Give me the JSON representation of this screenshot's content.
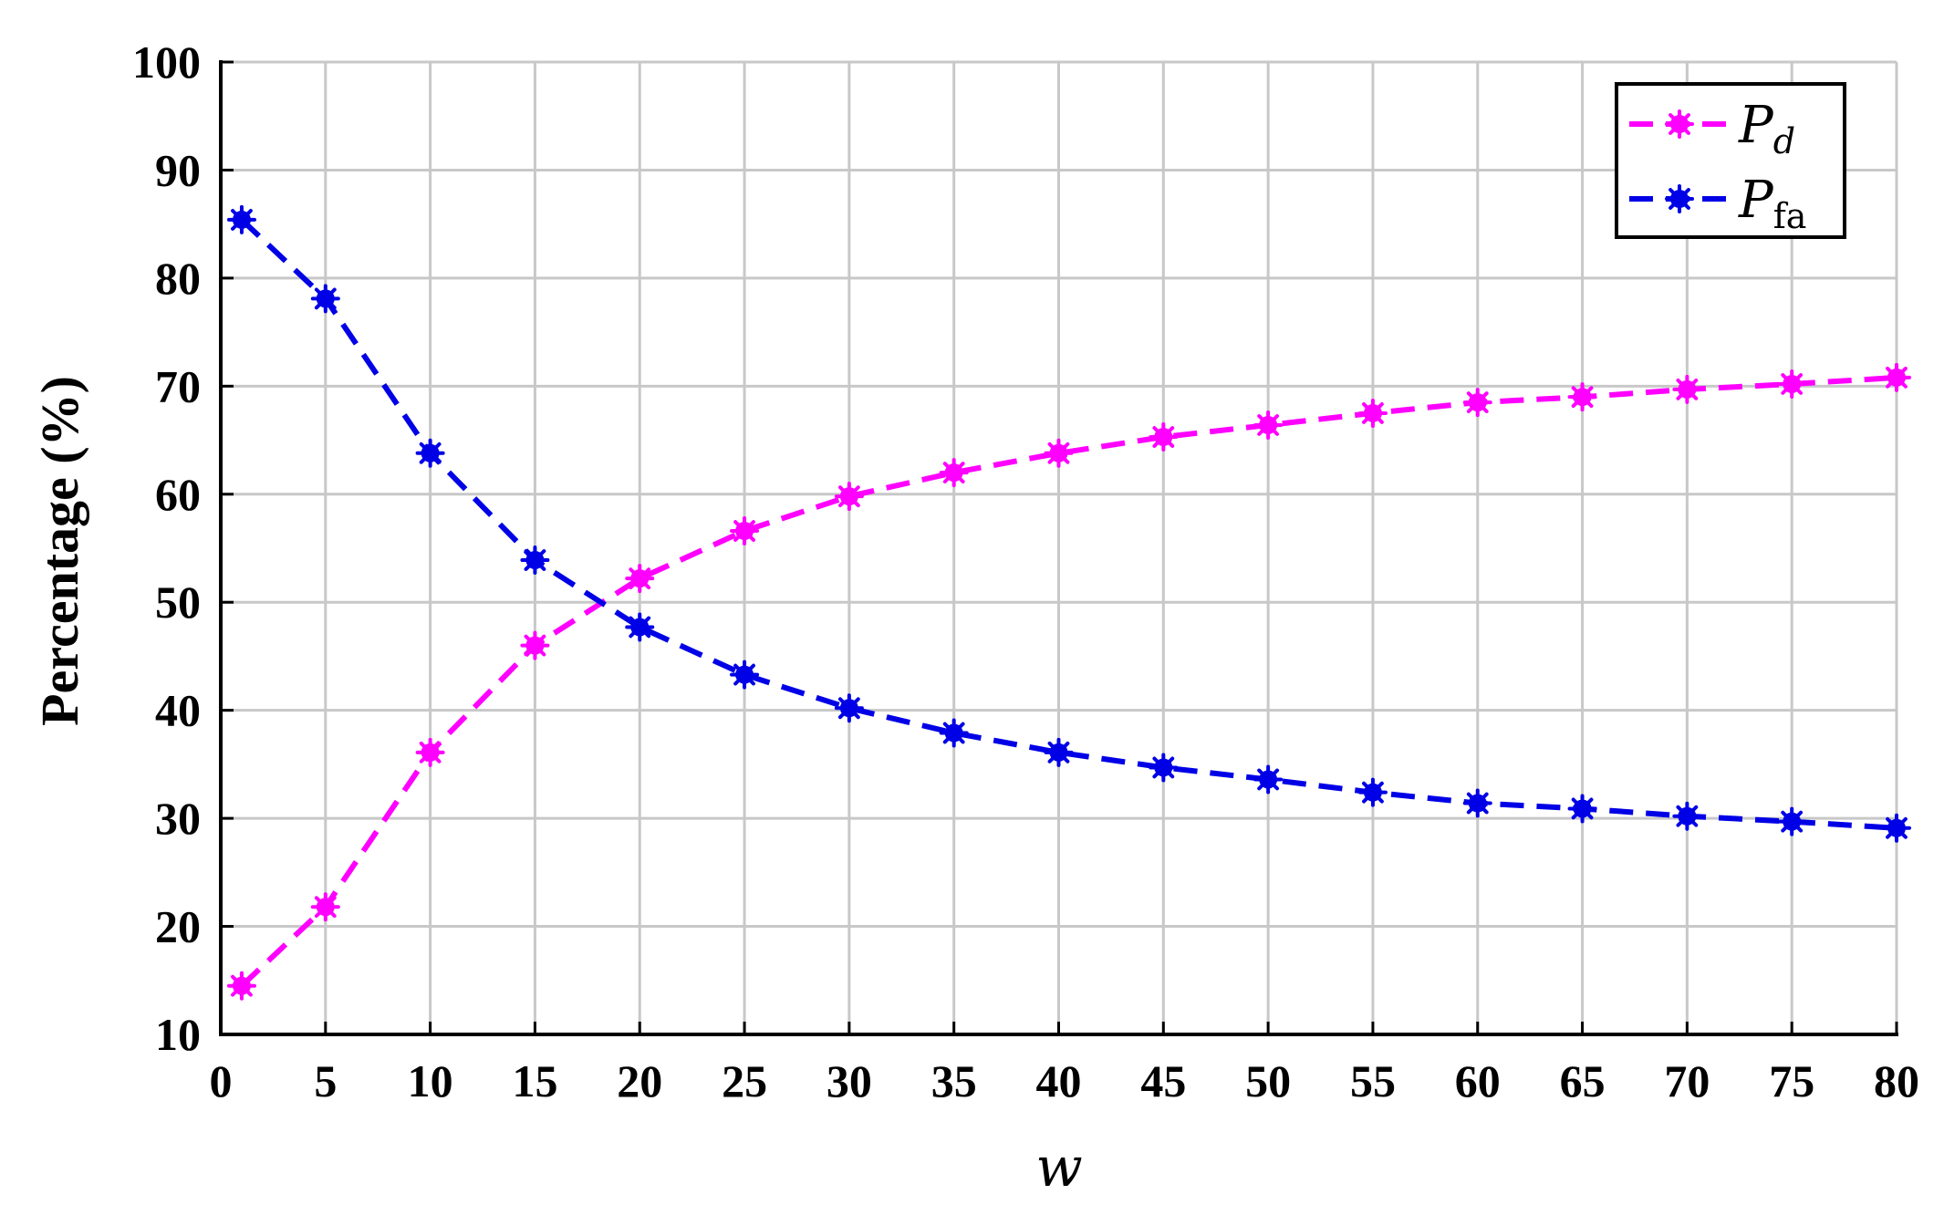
{
  "chart_data": {
    "type": "line",
    "x": [
      1,
      5,
      10,
      15,
      20,
      25,
      30,
      35,
      40,
      45,
      50,
      55,
      60,
      65,
      70,
      75,
      80
    ],
    "series": [
      {
        "name": "P",
        "name_sub": "d",
        "color": "#ff00ff",
        "values": [
          14.5,
          21.8,
          36.1,
          46.0,
          52.2,
          56.6,
          59.8,
          62.0,
          63.8,
          65.3,
          66.4,
          67.5,
          68.5,
          69.0,
          69.7,
          70.2,
          70.8
        ]
      },
      {
        "name": "P",
        "name_sub": "fa",
        "color": "#0000e6",
        "values": [
          85.4,
          78.1,
          63.8,
          53.9,
          47.7,
          43.3,
          40.2,
          37.9,
          36.1,
          34.7,
          33.6,
          32.4,
          31.4,
          30.9,
          30.2,
          29.7,
          29.1
        ]
      }
    ],
    "xlabel": "w",
    "ylabel": "Percentage (%)",
    "xlim": [
      0,
      80
    ],
    "ylim": [
      10,
      100
    ],
    "xticks": [
      "0",
      "5",
      "10",
      "15",
      "20",
      "25",
      "30",
      "35",
      "40",
      "45",
      "50",
      "55",
      "60",
      "65",
      "70",
      "75",
      "80"
    ],
    "yticks": [
      "10",
      "20",
      "30",
      "40",
      "50",
      "60",
      "70",
      "80",
      "90",
      "100"
    ],
    "grid": true,
    "legend_position": "top-right",
    "line_style": "dashed",
    "marker": "asterisk-dot"
  }
}
